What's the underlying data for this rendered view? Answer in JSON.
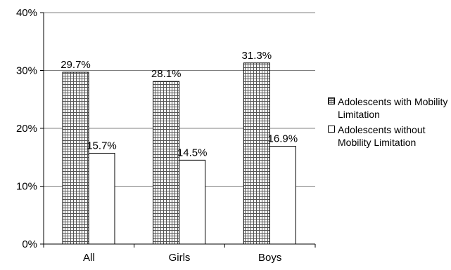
{
  "chart_data": {
    "type": "bar",
    "categories": [
      "All",
      "Girls",
      "Boys"
    ],
    "series": [
      {
        "name": "Adolescents with Mobility Limitation",
        "values": [
          29.7,
          28.1,
          31.3
        ],
        "labels": [
          "29.7%",
          "28.1%",
          "31.3%"
        ],
        "pattern": "crosshatch"
      },
      {
        "name": "Adolescents without Mobility Limitation",
        "values": [
          15.7,
          14.5,
          16.9
        ],
        "labels": [
          "15.7%",
          "14.5%",
          "16.9%"
        ],
        "pattern": "none"
      }
    ],
    "ylim": [
      0,
      40
    ],
    "yticks": [
      0,
      10,
      20,
      30,
      40
    ],
    "ytick_labels": [
      "0%",
      "10%",
      "20%",
      "30%",
      "40%"
    ],
    "grid": true,
    "legend_position": "right",
    "title": "",
    "xlabel": "",
    "ylabel": ""
  },
  "legend": {
    "items": [
      {
        "label": "Adolescents with Mobility Limitation"
      },
      {
        "label": "Adolescents without Mobility Limitation"
      }
    ]
  },
  "colors": {
    "bar_fill": "#ffffff",
    "hatch_line": "#555555",
    "axis": "#000000",
    "grid": "#808080"
  }
}
